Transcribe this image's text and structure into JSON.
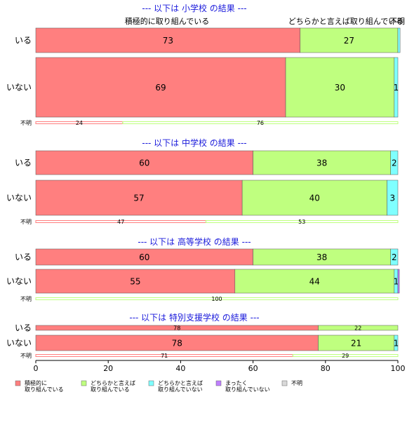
{
  "chart_data": {
    "type": "bar",
    "orientation": "horizontal",
    "stacked": true,
    "xlim": [
      0,
      100
    ],
    "xticks": [
      "0",
      "20",
      "40",
      "60",
      "80",
      "100"
    ],
    "top_category_labels": [
      "積極的に取り組んでいる",
      "どちらかと言えば取り組んでいる",
      "不明"
    ],
    "legend": {
      "placement": "bottom-left",
      "entries": [
        {
          "label_line1": "積極的に",
          "label_line2": "取り組んでいる",
          "color": "#ff7f7f"
        },
        {
          "label_line1": "どちらかと言えば",
          "label_line2": "取り組んでいる",
          "color": "#bfff7f"
        },
        {
          "label_line1": "どちらかと言えば",
          "label_line2": "取り組んでいない",
          "color": "#7fffff"
        },
        {
          "label_line1": "まったく",
          "label_line2": "取り組んでいない",
          "color": "#bf7fff"
        },
        {
          "label_line1": "不明",
          "label_line2": "",
          "color": "#d9d9d9"
        }
      ]
    },
    "sections": [
      {
        "title": "--- 以下は 小学校 の結果 ---",
        "rows": [
          {
            "label": "いる",
            "values": [
              73,
              27,
              0.6,
              0,
              0
            ],
            "labels": [
              "73",
              "27",
              "",
              "",
              ""
            ]
          },
          {
            "label": "いない",
            "values": [
              69,
              30,
              1,
              0,
              0
            ],
            "labels": [
              "69",
              "30",
              "1",
              "",
              ""
            ]
          }
        ],
        "share_row": {
          "label": "不明",
          "values": [
            24,
            76
          ],
          "labels": [
            "24",
            "76"
          ]
        }
      },
      {
        "title": "--- 以下は 中学校 の結果 ---",
        "rows": [
          {
            "label": "いる",
            "values": [
              60,
              38,
              2,
              0,
              0
            ],
            "labels": [
              "60",
              "38",
              "2",
              "",
              ""
            ]
          },
          {
            "label": "いない",
            "values": [
              57,
              40,
              3,
              0,
              0
            ],
            "labels": [
              "57",
              "40",
              "3",
              "",
              ""
            ]
          }
        ],
        "share_row": {
          "label": "不明",
          "values": [
            47,
            53
          ],
          "labels": [
            "47",
            "53"
          ]
        }
      },
      {
        "title": "--- 以下は 高等学校 の結果 ---",
        "rows": [
          {
            "label": "いる",
            "values": [
              60,
              38,
              2,
              0,
              0
            ],
            "labels": [
              "60",
              "38",
              "2",
              "",
              ""
            ]
          },
          {
            "label": "いない",
            "values": [
              55,
              44,
              1,
              0.4,
              0
            ],
            "labels": [
              "55",
              "44",
              "1",
              "",
              ""
            ]
          }
        ],
        "share_row": {
          "label": "不明",
          "values": [
            100
          ],
          "labels": [
            "100"
          ]
        }
      },
      {
        "title": "--- 以下は 特別支援学校 の結果 ---",
        "rows": [
          {
            "label": "いる",
            "values": [
              78,
              22,
              0,
              0,
              0
            ],
            "labels": [
              "78",
              "22",
              "",
              "",
              ""
            ]
          },
          {
            "label": "いない",
            "values": [
              78,
              21,
              1,
              0,
              0
            ],
            "labels": [
              "78",
              "21",
              "1",
              "",
              ""
            ]
          }
        ],
        "share_row": {
          "label": "不明",
          "values": [
            71,
            29
          ],
          "labels": [
            "71",
            "29"
          ]
        }
      }
    ]
  }
}
